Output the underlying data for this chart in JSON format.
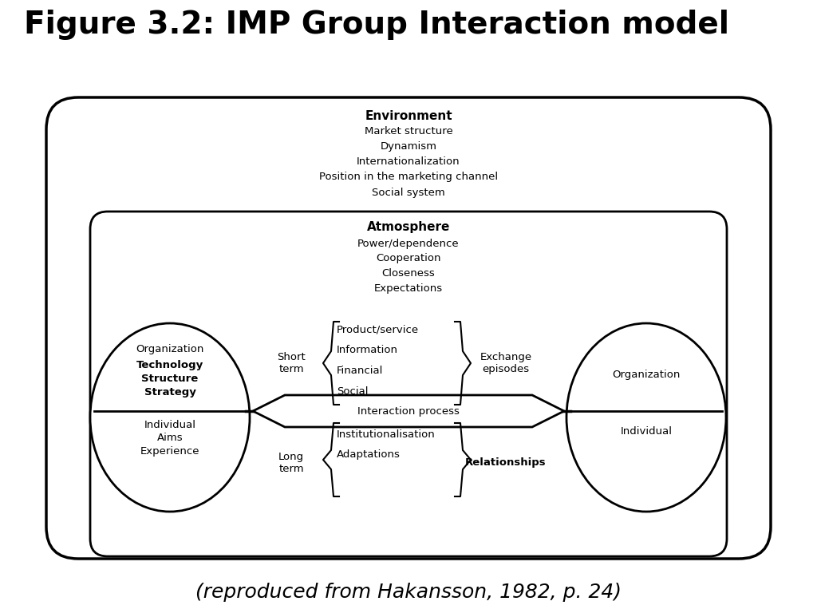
{
  "title": "Figure 3.2: IMP Group Interaction model",
  "title_fontsize": 28,
  "title_fontweight": "bold",
  "caption": "(reproduced from Hakansson, 1982, p. 24)",
  "caption_fontsize": 18,
  "bg_color": "#ffffff",
  "box_color": "#000000",
  "environment_label": "Environment",
  "environment_items": [
    "Market structure",
    "Dynamism",
    "Internationalization",
    "Position in the marketing channel",
    "Social system"
  ],
  "atmosphere_label": "Atmosphere",
  "atmosphere_items": [
    "Power/dependence",
    "Cooperation",
    "Closeness",
    "Expectations"
  ],
  "left_circle_top_items": [
    "Organization"
  ],
  "left_circle_mid_items": [
    "Technology",
    "Structure",
    "Strategy"
  ],
  "left_circle_bot_items": [
    "Individual",
    "Aims",
    "Experience"
  ],
  "right_circle_top": "Organization",
  "right_circle_bot": "Individual",
  "short_term_label": "Short\nterm",
  "short_term_items": [
    "Product/service",
    "Information",
    "Financial",
    "Social"
  ],
  "exchange_episodes_label": "Exchange\nepisodes",
  "long_term_label": "Long\nterm",
  "long_term_items": [
    "Institutionalisation",
    "Adaptations"
  ],
  "relationships_label": "Relationships",
  "interaction_process_label": "Interaction process"
}
